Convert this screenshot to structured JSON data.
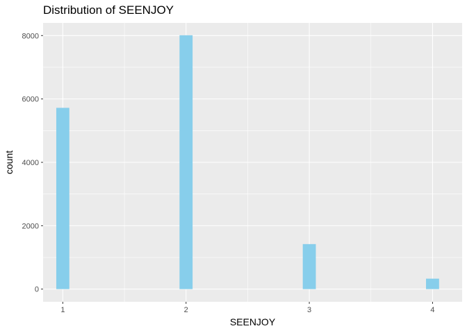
{
  "chart_data": {
    "type": "bar",
    "title": "Distribution of SEENJOY",
    "xlabel": "SEENJOY",
    "ylabel": "count",
    "x_ticks": [
      "1",
      "2",
      "3",
      "4"
    ],
    "y_ticks": [
      "0",
      "2000",
      "4000",
      "6000",
      "8000"
    ],
    "categories": [
      "1",
      "2",
      "3",
      "4"
    ],
    "values": [
      5720,
      8010,
      1420,
      330
    ],
    "xlim": [
      0.84,
      4.24
    ],
    "ylim": [
      -400,
      8400
    ],
    "grid": true,
    "bar_color": "#87CEEB",
    "panel_background": "#EBEBEB",
    "grid_color": "#FFFFFF"
  }
}
